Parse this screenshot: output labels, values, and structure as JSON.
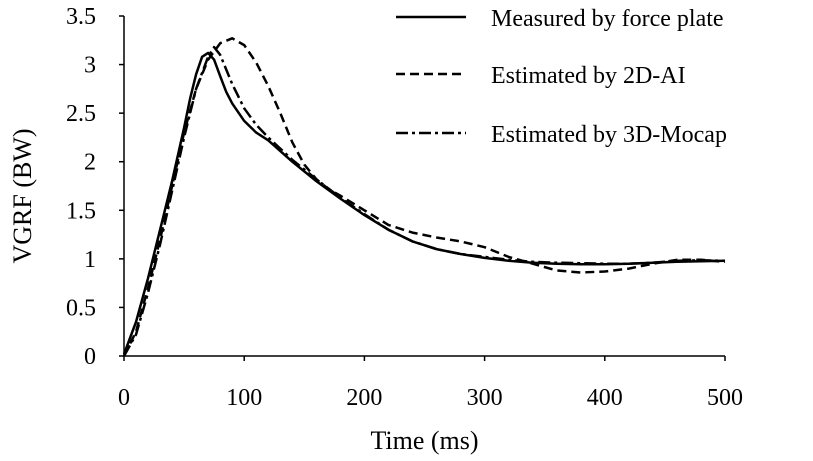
{
  "chart_data": {
    "type": "line",
    "xlabel": "Time (ms)",
    "ylabel": "VGRF (BW)",
    "xlim": [
      0,
      500
    ],
    "ylim": [
      0,
      3.5
    ],
    "x_ticks": [
      "0",
      "100",
      "200",
      "300",
      "400",
      "500"
    ],
    "y_ticks": [
      "0",
      "0.5",
      "1",
      "1.5",
      "2",
      "2.5",
      "3",
      "3.5"
    ],
    "grid": false,
    "legend_position": "top-right",
    "series": [
      {
        "name": "Measured by force plate",
        "style": "solid",
        "color": "#000000",
        "points": [
          [
            0,
            0.02
          ],
          [
            10,
            0.35
          ],
          [
            20,
            0.8
          ],
          [
            30,
            1.3
          ],
          [
            40,
            1.8
          ],
          [
            50,
            2.35
          ],
          [
            55,
            2.65
          ],
          [
            60,
            2.9
          ],
          [
            65,
            3.08
          ],
          [
            70,
            3.12
          ],
          [
            75,
            3.05
          ],
          [
            80,
            2.88
          ],
          [
            85,
            2.72
          ],
          [
            90,
            2.6
          ],
          [
            100,
            2.42
          ],
          [
            110,
            2.3
          ],
          [
            120,
            2.22
          ],
          [
            140,
            2.0
          ],
          [
            160,
            1.8
          ],
          [
            180,
            1.62
          ],
          [
            200,
            1.45
          ],
          [
            220,
            1.3
          ],
          [
            240,
            1.18
          ],
          [
            260,
            1.1
          ],
          [
            280,
            1.05
          ],
          [
            300,
            1.01
          ],
          [
            320,
            0.98
          ],
          [
            340,
            0.96
          ],
          [
            360,
            0.95
          ],
          [
            380,
            0.945
          ],
          [
            400,
            0.945
          ],
          [
            420,
            0.95
          ],
          [
            440,
            0.96
          ],
          [
            460,
            0.97
          ],
          [
            480,
            0.975
          ],
          [
            500,
            0.98
          ]
        ]
      },
      {
        "name": "Estimated by 2D-AI",
        "style": "dashed",
        "color": "#000000",
        "points": [
          [
            0,
            0.0
          ],
          [
            10,
            0.25
          ],
          [
            20,
            0.7
          ],
          [
            30,
            1.2
          ],
          [
            40,
            1.75
          ],
          [
            50,
            2.3
          ],
          [
            60,
            2.75
          ],
          [
            70,
            3.05
          ],
          [
            80,
            3.22
          ],
          [
            90,
            3.27
          ],
          [
            100,
            3.2
          ],
          [
            110,
            3.02
          ],
          [
            120,
            2.78
          ],
          [
            130,
            2.5
          ],
          [
            140,
            2.2
          ],
          [
            150,
            1.97
          ],
          [
            160,
            1.82
          ],
          [
            170,
            1.72
          ],
          [
            180,
            1.65
          ],
          [
            200,
            1.5
          ],
          [
            220,
            1.35
          ],
          [
            240,
            1.27
          ],
          [
            260,
            1.22
          ],
          [
            280,
            1.18
          ],
          [
            300,
            1.12
          ],
          [
            320,
            1.02
          ],
          [
            340,
            0.95
          ],
          [
            360,
            0.88
          ],
          [
            380,
            0.86
          ],
          [
            400,
            0.87
          ],
          [
            420,
            0.9
          ],
          [
            440,
            0.95
          ],
          [
            460,
            0.99
          ],
          [
            480,
            0.99
          ],
          [
            500,
            0.97
          ]
        ]
      },
      {
        "name": "Estimated by 3D-Mocap",
        "style": "dashdot",
        "color": "#000000",
        "points": [
          [
            0,
            0.0
          ],
          [
            10,
            0.22
          ],
          [
            20,
            0.65
          ],
          [
            30,
            1.15
          ],
          [
            40,
            1.7
          ],
          [
            50,
            2.25
          ],
          [
            60,
            2.75
          ],
          [
            70,
            3.08
          ],
          [
            75,
            3.18
          ],
          [
            80,
            3.1
          ],
          [
            90,
            2.8
          ],
          [
            100,
            2.55
          ],
          [
            110,
            2.38
          ],
          [
            120,
            2.25
          ],
          [
            140,
            2.02
          ],
          [
            160,
            1.82
          ],
          [
            180,
            1.63
          ],
          [
            200,
            1.46
          ],
          [
            220,
            1.3
          ],
          [
            240,
            1.18
          ],
          [
            260,
            1.1
          ],
          [
            280,
            1.05
          ],
          [
            300,
            1.02
          ],
          [
            320,
            0.99
          ],
          [
            340,
            0.97
          ],
          [
            360,
            0.96
          ],
          [
            380,
            0.955
          ],
          [
            400,
            0.95
          ],
          [
            420,
            0.95
          ],
          [
            440,
            0.96
          ],
          [
            460,
            0.98
          ],
          [
            480,
            0.985
          ],
          [
            500,
            0.98
          ]
        ]
      }
    ]
  }
}
